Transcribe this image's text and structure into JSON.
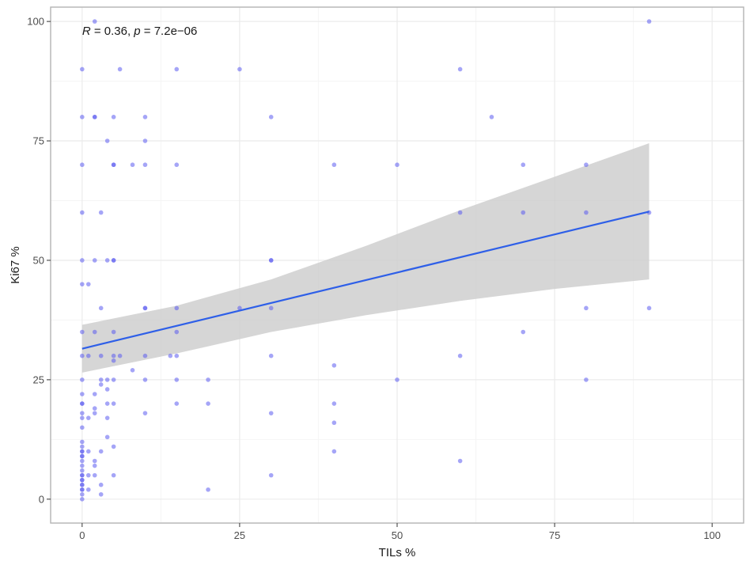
{
  "colors": {
    "panel_border": "#b3b3b3",
    "grid_major": "#ebebeb",
    "grid_minor": "#f5f5f5",
    "point": "#5b5bf0",
    "fit_line": "#2e5fe8",
    "ci_band": "#cccccc"
  },
  "chart_data": {
    "type": "scatter",
    "title": "",
    "xlabel": "TILs %",
    "ylabel": "Ki67 %",
    "xlim": [
      -5,
      105
    ],
    "ylim": [
      -5,
      103
    ],
    "x_ticks": [
      0,
      25,
      50,
      75,
      100
    ],
    "y_ticks": [
      0,
      25,
      50,
      75,
      100
    ],
    "x_tick_labels": [
      "0",
      "25",
      "50",
      "75",
      "100"
    ],
    "y_tick_labels": [
      "0",
      "25",
      "50",
      "75",
      "100"
    ],
    "grid": true,
    "theme": "bordered panel, white background, light grey grid",
    "annotation": {
      "r_symbol": "R",
      "r_text": " = 0.36, ",
      "p_symbol": "p",
      "p_text": " = 7.2e−06",
      "x": 0,
      "y": 98
    },
    "fit": {
      "method": "linear regression",
      "x": [
        0,
        90
      ],
      "y": [
        31.5,
        60.2
      ],
      "ci_lower": [
        26.5,
        46
      ],
      "ci_upper": [
        36.5,
        74.5
      ],
      "ci_at_x": [
        0,
        15,
        30,
        45,
        60,
        75,
        90
      ],
      "ci_lower_curve": [
        26.5,
        30.5,
        35,
        38.5,
        41.5,
        44,
        46
      ],
      "ci_upper_curve": [
        36.5,
        40.5,
        46,
        53,
        60.5,
        67.5,
        74.5
      ]
    },
    "series": [
      {
        "x": [
          0,
          0,
          0,
          0,
          0,
          0,
          0,
          0,
          0,
          0,
          0,
          0,
          0,
          0,
          0,
          0,
          0,
          0,
          0,
          0,
          0,
          0,
          0,
          0,
          0,
          0,
          0,
          0,
          0,
          0,
          0,
          0,
          0,
          0,
          1,
          1,
          1,
          1,
          1,
          1,
          2,
          2,
          2,
          2,
          2,
          2,
          2,
          2,
          2,
          2,
          2,
          3,
          3,
          3,
          3,
          3,
          3,
          3,
          3,
          4,
          4,
          4,
          4,
          4,
          4,
          4,
          5,
          5,
          5,
          5,
          5,
          5,
          5,
          5,
          5,
          5,
          5,
          5,
          6,
          6,
          8,
          8,
          10,
          10,
          10,
          10,
          10,
          10,
          10,
          10,
          14,
          15,
          15,
          15,
          15,
          15,
          15,
          15,
          20,
          20,
          20,
          25,
          25,
          30,
          30,
          30,
          30,
          30,
          30,
          30,
          40,
          40,
          40,
          40,
          40,
          50,
          50,
          60,
          60,
          60,
          60,
          65,
          70,
          70,
          70,
          80,
          80,
          80,
          80,
          90,
          90,
          90
        ],
        "y": [
          90,
          80,
          70,
          60,
          50,
          45,
          35,
          30,
          25,
          22,
          20,
          20,
          18,
          17,
          15,
          12,
          11,
          10,
          10,
          9,
          9,
          8,
          7,
          6,
          5,
          5,
          4,
          4,
          3,
          3,
          2,
          2,
          1,
          0,
          45,
          30,
          17,
          10,
          5,
          2,
          100,
          80,
          80,
          50,
          35,
          22,
          19,
          18,
          8,
          7,
          5,
          60,
          40,
          30,
          25,
          24,
          10,
          3,
          1,
          75,
          50,
          25,
          23,
          20,
          17,
          13,
          80,
          70,
          70,
          50,
          35,
          30,
          29,
          25,
          20,
          11,
          5,
          50,
          90,
          30,
          70,
          27,
          80,
          75,
          70,
          40,
          30,
          25,
          18,
          40,
          30,
          90,
          70,
          40,
          35,
          30,
          25,
          20,
          25,
          20,
          2,
          90,
          40,
          80,
          50,
          50,
          40,
          30,
          18,
          5,
          70,
          28,
          20,
          16,
          10,
          70,
          25,
          90,
          60,
          30,
          8,
          80,
          70,
          60,
          35,
          70,
          60,
          40,
          25,
          100,
          60,
          40
        ],
        "marker": "circle"
      }
    ]
  }
}
